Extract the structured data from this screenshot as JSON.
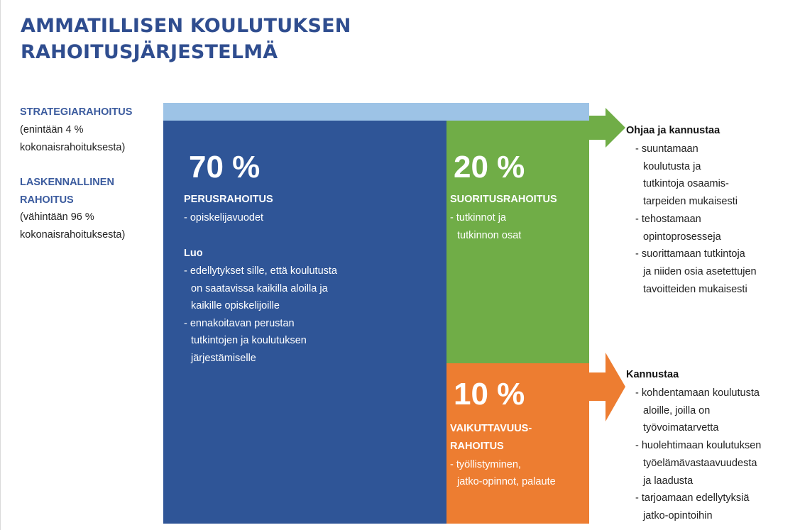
{
  "title": [
    "AMMATILLISEN KOULUTUKSEN",
    "RAHOITUSJÄRJESTELMÄ"
  ],
  "left": {
    "strategy": {
      "heading": [
        "STRATEGIARAHOITUS"
      ],
      "lines": [
        "(enintään 4 %",
        "kokonaisrahoituksesta)"
      ]
    },
    "calculated": {
      "heading": [
        "LASKENNALLINEN",
        "RAHOITUS"
      ],
      "lines": [
        "(vähintään 96 %",
        "kokonaisrahoituksesta)"
      ]
    }
  },
  "blocks": [
    {
      "percent": "70 %",
      "heading": [
        "PERUSRAHOITUS"
      ],
      "lines": [
        "- opiskelijavuodet"
      ],
      "sub_heading": "Luo",
      "sub_lines": [
        "- edellytykset sille, että koulutusta",
        "on saatavissa kaikilla aloilla ja",
        "kaikille opiskelijoille",
        "- ennakoitavan perustan",
        "tutkintojen ja koulutuksen",
        "järjestämiselle"
      ]
    },
    {
      "percent": "20 %",
      "heading": [
        "SUORITUSRAHOITUS"
      ],
      "lines": [
        "- tutkinnot ja",
        "tutkinnon osat"
      ]
    },
    {
      "percent": "10 %",
      "heading": [
        "VAIKUTTAVUUS-",
        "RAHOITUS"
      ],
      "lines": [
        "- työllistyminen,",
        "jatko-opinnot, palaute"
      ]
    }
  ],
  "effects": [
    {
      "heading": "Ohjaa ja kannustaa",
      "lines": [
        "- suuntamaan",
        "koulutusta ja",
        "tutkintoja osaamis-",
        "tarpeiden mukaisesti",
        "- tehostamaan",
        "opintoprosesseja",
        "- suorittamaan tutkintoja",
        "ja niiden osia asetettujen",
        "tavoitteiden mukaisesti"
      ]
    },
    {
      "heading": "Kannustaa",
      "lines": [
        "- kohdentamaan koulutusta",
        "aloille, joilla on",
        "työvoimatarvetta",
        "- huolehtimaan koulutuksen",
        "työelämävastaavuudesta",
        "ja laadusta",
        "- tarjoamaan edellytyksiä",
        "jatko-opintoihin"
      ]
    }
  ]
}
